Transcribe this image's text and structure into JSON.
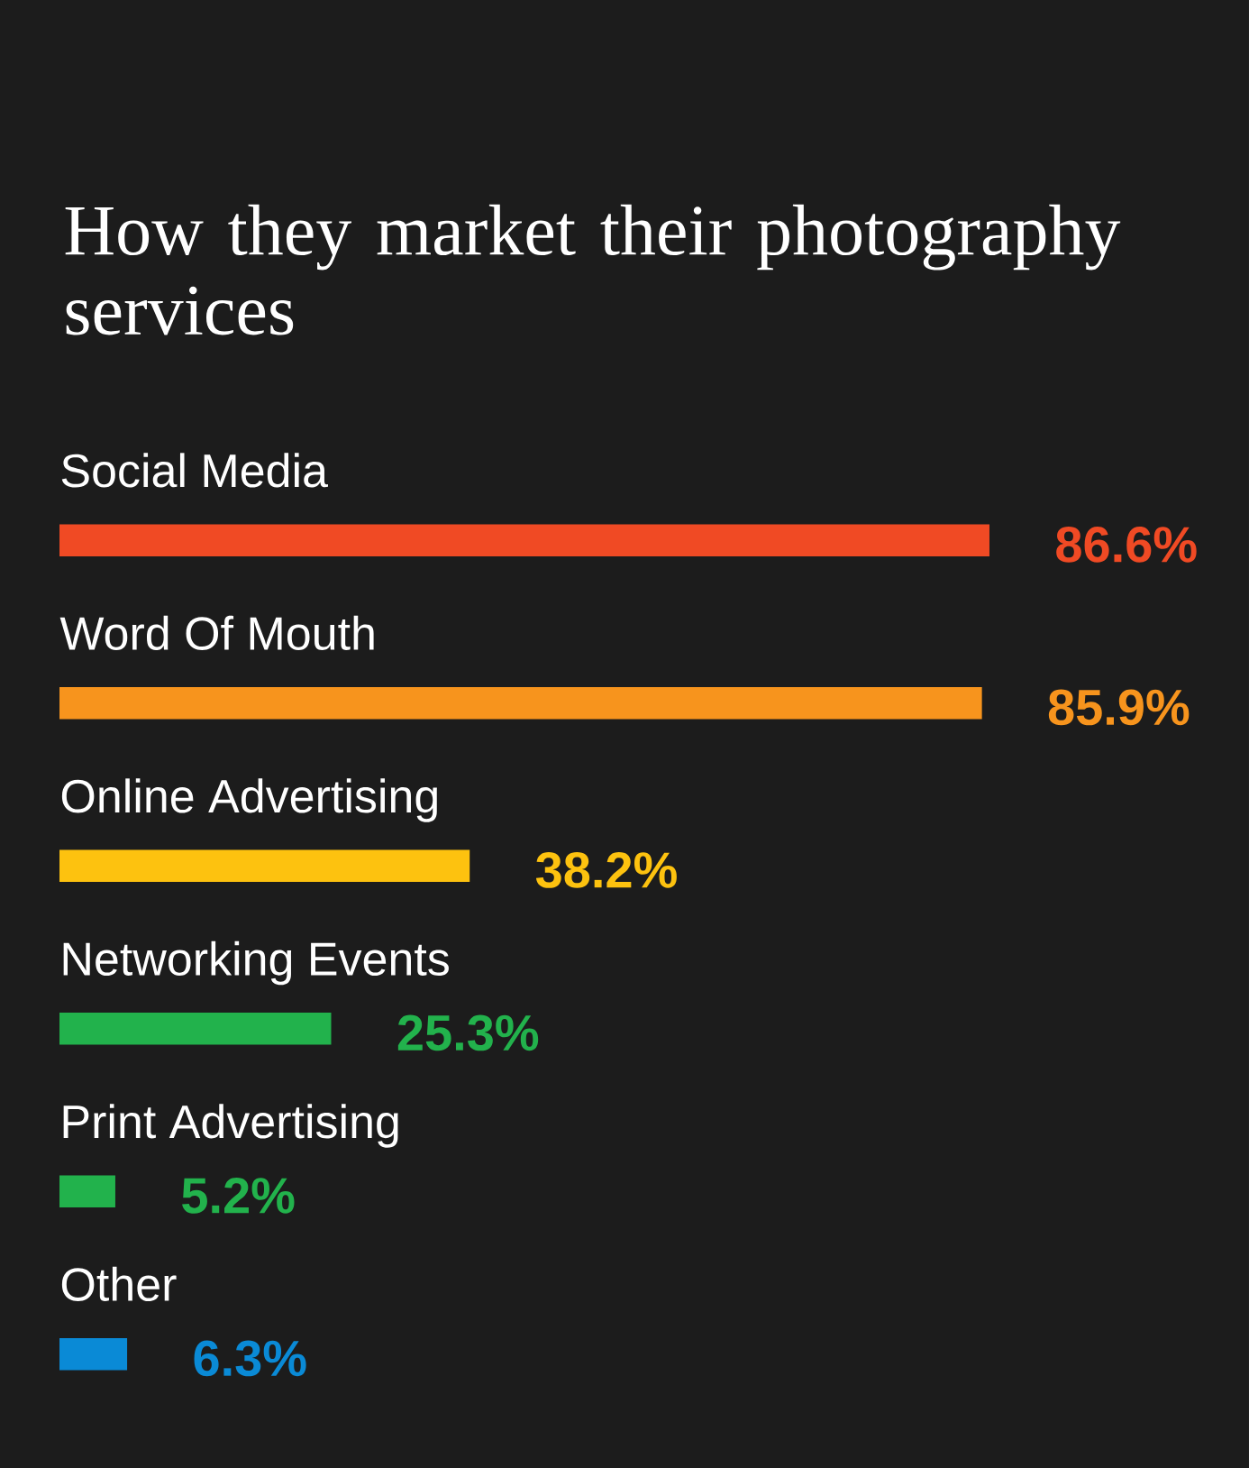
{
  "chart_data": {
    "type": "bar",
    "orientation": "horizontal",
    "title": "How they market their photography services",
    "categories": [
      "Social Media",
      "Word Of Mouth",
      "Online Advertising",
      "Networking Events",
      "Print Advertising",
      "Other"
    ],
    "values": [
      86.6,
      85.9,
      38.2,
      25.3,
      5.2,
      6.3
    ],
    "colors": [
      "#f04a24",
      "#f7941d",
      "#fdc20f",
      "#22b24c",
      "#22b24c",
      "#0a8ad6"
    ],
    "value_labels": [
      "86.6%",
      "85.9%",
      "38.2%",
      "25.3%",
      "5.2%",
      "6.3%"
    ]
  }
}
